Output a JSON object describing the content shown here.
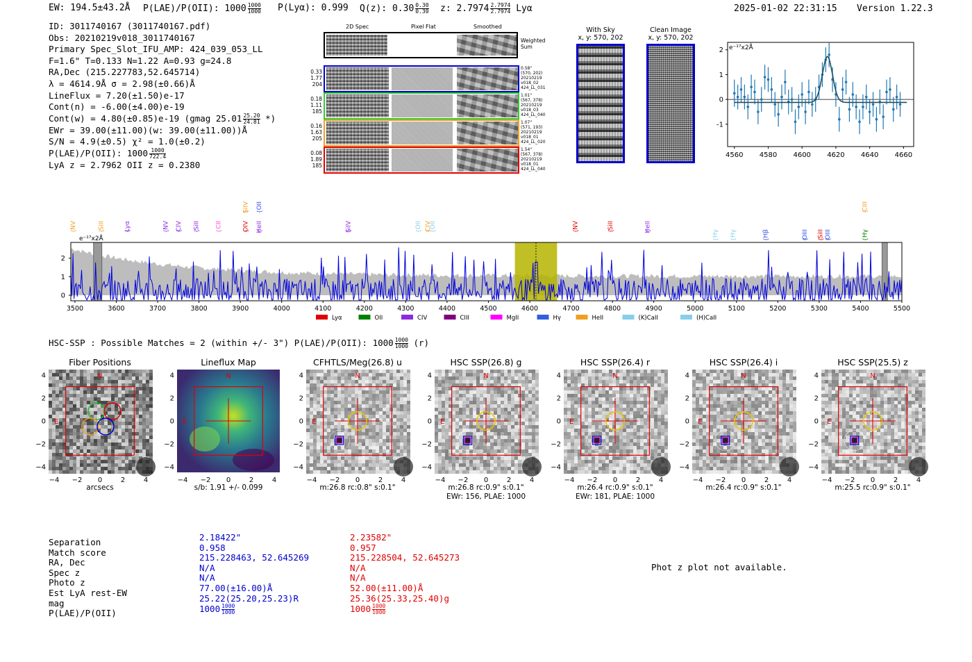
{
  "header": {
    "ew": "EW: 194.5±43.2Å",
    "plae_label": "P(LAE)/P(OII): 1000",
    "plae_num": "1000",
    "plae_den": "1000",
    "plya": "P(Lyα): 0.999",
    "qz": "Q(z): 0.30",
    "qz_num": "0.30",
    "qz_den": "0.30",
    "z": "z: 2.7974",
    "z_num": "2.7974",
    "z_den": "2.7974",
    "z_line": "Lyα",
    "timestamp": "2025-01-02 22:31:15",
    "version": "Version 1.22.3"
  },
  "info": {
    "id": "ID: 3011740167 (3011740167.pdf)",
    "obs": "Obs: 20210219v018_3011740167",
    "primary": "Primary Spec_Slot_IFU_AMP: 424_039_053_LL",
    "params": "F=1.6\"  T=0.133  N=1.22  A=0.93  g=24.8",
    "radec": "RA,Dec (215.227783,52.645714)",
    "lambda": "λ = 4614.9Å   σ = 2.98(±0.66)Å",
    "lineflux": "LineFlux = 7.20(±1.50)e-17",
    "contn": "Cont(n) = -6.00(±4.00)e-19",
    "contw": "Cont(w) = 4.80(±0.85)e-19 (gmag 25.01",
    "contw_num": "25.20",
    "contw_den": "24.81",
    "contw_end": "*)",
    "ewr": "EWr = 39.00(±11.00)(w: 39.00(±11.00))Å",
    "sn": "S/N = 4.9(±0.5)  χ² = 1.0(±0.2)",
    "plae": "P(LAE)/P(OII): 1000",
    "plae_num": "1000",
    "plae_den": "722.4",
    "lyaz": "LyA z = 2.7962  OII z = 0.2380"
  },
  "spec2d": {
    "col_titles": [
      "2D Spec",
      "Pixel Flat",
      "Smoothed"
    ],
    "weighted_label": "Weighted Sum",
    "rows": [
      {
        "left": [
          "0.33",
          "1.77",
          "204"
        ],
        "right": [
          "0.58\"",
          "(570, 202)",
          "20210219",
          "v018_02",
          "424_LL_031"
        ],
        "color": "#0000cc"
      },
      {
        "left": [
          "0.18",
          "1.11",
          "185"
        ],
        "right": [
          "1.01\"",
          "(567, 378)",
          "20210219",
          "v018_03",
          "424_LL_040"
        ],
        "color": "#33cc33"
      },
      {
        "left": [
          "0.16",
          "1.63",
          "205"
        ],
        "right": [
          "1.07\"",
          "(571, 193)",
          "20210219",
          "v018_01",
          "424_LL_020"
        ],
        "color": "#f0a020"
      },
      {
        "left": [
          "0.08",
          "1.89",
          "185"
        ],
        "right": [
          "1.54\"",
          "(567, 378)",
          "20210219",
          "v018_01",
          "424_LL_040"
        ],
        "color": "#e00000"
      }
    ]
  },
  "sky": {
    "with_sky_title": "With Sky",
    "with_sky_xy": "x, y: 570, 202",
    "clean_title": "Clean Image",
    "clean_xy": "x, y: 570, 202"
  },
  "chart_data": [
    {
      "type": "scatter",
      "title": "",
      "ylabel_units": "e⁻¹⁷x2Å",
      "xlim": [
        4556,
        4666
      ],
      "ylim": [
        -1.9,
        2.3
      ],
      "xticks": [
        4560,
        4580,
        4600,
        4620,
        4640,
        4660
      ],
      "yticks": [
        -1,
        0,
        1,
        2
      ],
      "x": [
        4560,
        4562,
        4564,
        4566,
        4568,
        4570,
        4572,
        4574,
        4576,
        4578,
        4580,
        4582,
        4584,
        4586,
        4588,
        4590,
        4592,
        4594,
        4596,
        4598,
        4600,
        4602,
        4604,
        4606,
        4608,
        4610,
        4612,
        4614,
        4616,
        4618,
        4620,
        4622,
        4624,
        4626,
        4628,
        4630,
        4632,
        4634,
        4636,
        4638,
        4640,
        4642,
        4644,
        4646,
        4648,
        4650,
        4652,
        4654,
        4656,
        4658
      ],
      "y": [
        0.25,
        0.1,
        0.4,
        0.1,
        -0.3,
        0.5,
        0.3,
        -0.5,
        0.0,
        0.9,
        0.8,
        0.4,
        -0.2,
        -0.6,
        0.1,
        0.7,
        -0.1,
        0.0,
        -0.9,
        -0.3,
        0.2,
        -0.5,
        0.3,
        -0.2,
        0.0,
        0.5,
        1.0,
        1.6,
        1.8,
        0.8,
        0.2,
        -0.8,
        0.4,
        0.7,
        -0.4,
        0.2,
        -0.3,
        -0.9,
        -0.3,
        0.1,
        -0.5,
        -0.2,
        -0.8,
        -0.1,
        -0.7,
        0.3,
        0.4,
        -0.4,
        0.1,
        -0.2
      ],
      "err": [
        0.55,
        0.5,
        0.5,
        0.5,
        0.5,
        0.5,
        0.5,
        0.5,
        0.5,
        0.5,
        0.5,
        0.5,
        0.5,
        0.5,
        0.5,
        0.5,
        0.5,
        0.5,
        0.5,
        0.5,
        0.5,
        0.5,
        0.5,
        0.5,
        0.5,
        0.5,
        0.5,
        0.5,
        0.5,
        0.5,
        0.5,
        0.5,
        0.5,
        0.5,
        0.5,
        0.5,
        0.5,
        0.5,
        0.5,
        0.5,
        0.5,
        0.5,
        0.5,
        0.5,
        0.5,
        0.5,
        0.5,
        0.5,
        0.5,
        0.5
      ],
      "fit": {
        "center": 4615,
        "sigma": 3.0,
        "amp": 1.85,
        "baseline": -0.12
      }
    },
    {
      "type": "line",
      "title": "",
      "ylabel_units": "e⁻¹⁷x2Å",
      "xlim": [
        3490,
        5500
      ],
      "ylim": [
        -0.3,
        2.85
      ],
      "xticks": [
        3500,
        3600,
        3700,
        3800,
        3900,
        4000,
        4100,
        4200,
        4300,
        4400,
        4500,
        4600,
        4700,
        4800,
        4900,
        5000,
        5100,
        5200,
        5300,
        5400,
        5500
      ],
      "yticks": [
        0,
        1,
        2
      ],
      "highlight_range": [
        4564,
        4666
      ],
      "marker_x": 4615,
      "gray_bars": [
        [
          3545,
          3565
        ],
        [
          5452,
          5465
        ]
      ],
      "line_labels": [
        {
          "name": "NV",
          "x": 3500,
          "color": "#f0a020",
          "row": 1
        },
        {
          "name": "SiII",
          "x": 3568,
          "color": "#f0a020",
          "row": 1
        },
        {
          "name": "Lyα",
          "x": 3631,
          "color": "#8a2be2",
          "row": 1
        },
        {
          "name": "NV",
          "x": 3724,
          "color": "#8a2be2",
          "row": 1
        },
        {
          "name": "CIV",
          "x": 3755,
          "color": "#8a2be2",
          "row": 1
        },
        {
          "name": "SiII",
          "x": 3798,
          "color": "#8a2be2",
          "row": 1
        },
        {
          "name": "CII",
          "x": 3852,
          "color": "#ff44cc",
          "row": 1
        },
        {
          "name": "SiIV",
          "x": 3917,
          "color": "#f0a020",
          "row": 0
        },
        {
          "name": "OIV",
          "x": 3917,
          "color": "#e00000",
          "row": 1
        },
        {
          "name": "OII",
          "x": 3950,
          "color": "#3050e0",
          "row": 0
        },
        {
          "name": "HeII",
          "x": 3950,
          "color": "#8a2be2",
          "row": 1
        },
        {
          "name": "SiIV",
          "x": 4166,
          "color": "#8a2be2",
          "row": 1
        },
        {
          "name": "OII",
          "x": 4335,
          "color": "#87ceeb",
          "row": 1
        },
        {
          "name": "CIV",
          "x": 4358,
          "color": "#f0a020",
          "row": 1
        },
        {
          "name": "OII",
          "x": 4370,
          "color": "#87ceeb",
          "row": 1
        },
        {
          "name": "NV",
          "x": 4715,
          "color": "#e00000",
          "row": 1
        },
        {
          "name": "SiII",
          "x": 4800,
          "color": "#e00000",
          "row": 1
        },
        {
          "name": "HeII",
          "x": 4890,
          "color": "#8a2be2",
          "row": 1
        },
        {
          "name": "Hγ",
          "x": 5053,
          "color": "#87ceeb",
          "row": 2
        },
        {
          "name": "Hγ",
          "x": 5096,
          "color": "#87ceeb",
          "row": 2
        },
        {
          "name": "Hβ",
          "x": 5175,
          "color": "#3050e0",
          "row": 2
        },
        {
          "name": "OIII",
          "x": 5270,
          "color": "#3050e0",
          "row": 2
        },
        {
          "name": "SiII",
          "x": 5308,
          "color": "#e00000",
          "row": 2
        },
        {
          "name": "OIII",
          "x": 5325,
          "color": "#3050e0",
          "row": 2
        },
        {
          "name": "CIII",
          "x": 5415,
          "color": "#f0a020",
          "row": 0
        },
        {
          "name": "Hγ",
          "x": 5415,
          "color": "#008000",
          "row": 2
        }
      ],
      "legend": [
        {
          "name": "Lyα",
          "color": "#e00000"
        },
        {
          "name": "OII",
          "color": "#008000"
        },
        {
          "name": "CIV",
          "color": "#8a2be2"
        },
        {
          "name": "CIII",
          "color": "#800080"
        },
        {
          "name": "MgII",
          "color": "#ff00ff"
        },
        {
          "name": "Hγ",
          "color": "#3060e0"
        },
        {
          "name": "HeII",
          "color": "#f0a020"
        },
        {
          "name": "(K)CaII",
          "color": "#87ceeb"
        },
        {
          "name": "(H)CaII",
          "color": "#87ceeb"
        }
      ]
    }
  ],
  "hsc": {
    "summary": "HSC-SSP : Possible Matches = 2 (within +/- 3\")  P(LAE)/P(OII): 1000",
    "summary_num": "1000",
    "summary_den": "1000",
    "summary_end": "(r)",
    "tick_labels": [
      "−4",
      "−2",
      "0",
      "2",
      "4"
    ],
    "compass_n": "N",
    "compass_e": "E",
    "cutouts": [
      {
        "title": "Fiber Positions",
        "caption": "arcsecs",
        "caption2": "",
        "kind": "fiber"
      },
      {
        "title": "Lineflux Map",
        "caption": "s/b: 1.91 +/- 0.099",
        "caption2": "",
        "kind": "flux"
      },
      {
        "title": "CFHTLS/Meg(26.8) u",
        "caption": "m:26.8 rc:0.8\"  s:0.1\"",
        "caption2": "",
        "kind": "img"
      },
      {
        "title": "HSC SSP(26.8) g",
        "caption": "m:26.8 rc:0.9\"  s:0.1\"",
        "caption2": "EWr: 156, PLAE: 1000",
        "kind": "img"
      },
      {
        "title": "HSC SSP(26.4) r",
        "caption": "m:26.4 rc:0.9\"  s:0.1\"",
        "caption2": "EWr: 181, PLAE: 1000",
        "kind": "img"
      },
      {
        "title": "HSC SSP(26.4) i",
        "caption": "m:26.4 rc:0.9\"  s:0.1\"",
        "caption2": "",
        "kind": "img"
      },
      {
        "title": "HSC SSP(25.5) z",
        "caption": "m:25.5 rc:0.9\"  s:0.1\"",
        "caption2": "",
        "kind": "img"
      }
    ]
  },
  "matches": {
    "labels": [
      "Separation",
      "Match score",
      "RA, Dec",
      "Spec z",
      "Photo z",
      "Est LyA rest-EW",
      "mag",
      "P(LAE)/P(OII)"
    ],
    "col1": [
      "2.18422\"",
      "0.958",
      "215.228463, 52.645269",
      "N/A",
      "N/A",
      "77.00(±16.00)Å",
      "25.22(25.20,25.23)R",
      "1000"
    ],
    "col1_frac": [
      "1000",
      "1000"
    ],
    "col2": [
      "2.23582\"",
      "0.957",
      "215.228504, 52.645273",
      "N/A",
      "N/A",
      "52.00(±11.00)Å",
      "25.36(25.33,25.40)g",
      "1000"
    ],
    "col2_frac": [
      "1000",
      "1000"
    ],
    "photz_msg": "Phot z plot not available."
  },
  "colors": {
    "blue": "#0000cc",
    "red": "#e00000",
    "fit_line": "#1f4f5f",
    "points": "#1f77b4",
    "spectrum": "#0000dd",
    "error_band": "#bdbdbd",
    "highlight": "#b5b500"
  }
}
